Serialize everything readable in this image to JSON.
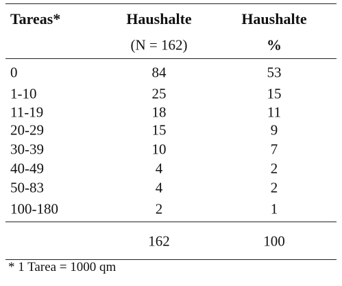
{
  "table": {
    "header": [
      "Tareas*",
      "Haushalte",
      "Haushalte"
    ],
    "subheader": [
      "(N = 162)",
      "%"
    ],
    "rows": [
      [
        "0",
        84,
        53
      ],
      [
        "1-10",
        25,
        15
      ],
      [
        "11-19",
        18,
        11
      ],
      [
        "20-29",
        15,
        9
      ],
      [
        "30-39",
        10,
        7
      ],
      [
        "40-49",
        4,
        2
      ],
      [
        "50-83",
        4,
        2
      ],
      [
        "100-180",
        2,
        1
      ]
    ],
    "total": [
      162,
      100
    ]
  },
  "footnote": "* 1 Tarea = 1000 qm"
}
